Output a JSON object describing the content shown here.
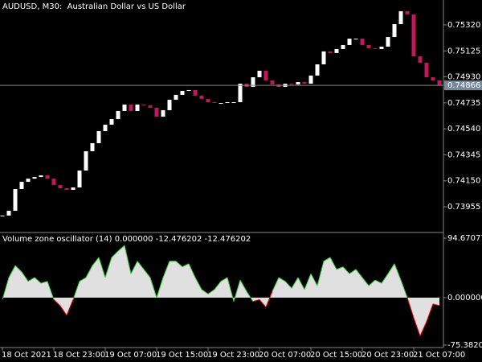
{
  "chart_data": [
    {
      "type": "candlestick",
      "title": "AUDUSD, M30:  Australian Dollar vs US Dollar",
      "values": [
        0.73889,
        0.73925,
        0.74088,
        0.74142,
        0.74166,
        0.74178,
        0.74191,
        0.74166,
        0.74118,
        0.74094,
        0.74082,
        0.741,
        0.74227,
        0.74372,
        0.74432,
        0.74523,
        0.74571,
        0.74613,
        0.74674,
        0.74722,
        0.74674,
        0.74722,
        0.74716,
        0.74698,
        0.74631,
        0.7468,
        0.74758,
        0.74795,
        0.74825,
        0.74831,
        0.74789,
        0.74764,
        0.7474,
        0.74734,
        0.74734,
        0.7474,
        0.7474,
        0.74879,
        0.74855,
        0.74927,
        0.74976,
        0.74903,
        0.74873,
        0.74855,
        0.74879,
        0.74873,
        0.74891,
        0.74879,
        0.7494,
        0.75024,
        0.75121,
        0.75109,
        0.75139,
        0.75169,
        0.75217,
        0.75217,
        0.75169,
        0.75145,
        0.75139,
        0.75157,
        0.75229,
        0.75326,
        0.75423,
        0.75399,
        0.75084,
        0.75036,
        0.74927,
        0.74903,
        0.74866
      ],
      "last_price_label": "0.74866",
      "up_color": "#ffffff",
      "down_color": "#c2185b",
      "ylim": [
        0.73768,
        0.75507
      ],
      "yticks": [
        {
          "value": 0.7532,
          "label": "0.75320"
        },
        {
          "value": 0.75125,
          "label": "0.75125"
        },
        {
          "value": 0.7493,
          "label": "0.74930"
        },
        {
          "value": 0.74735,
          "label": "0.74735"
        },
        {
          "value": 0.7454,
          "label": "0.74540"
        },
        {
          "value": 0.74345,
          "label": "0.74345"
        },
        {
          "value": 0.7415,
          "label": "0.74150"
        },
        {
          "value": 0.73955,
          "label": "0.73955"
        }
      ]
    },
    {
      "type": "area",
      "title": "Volume zone oscillator (14) 0.000000 -12.476202 -12.476202",
      "categories": [
        "18 Oct 2021",
        null,
        null,
        null,
        null,
        null,
        null,
        null,
        "18 Oct 23:00",
        null,
        null,
        null,
        null,
        null,
        null,
        null,
        "19 Oct 07:00",
        null,
        null,
        null,
        null,
        null,
        null,
        null,
        "19 Oct 15:00",
        null,
        null,
        null,
        null,
        null,
        null,
        null,
        "19 Oct 23:00",
        null,
        null,
        null,
        null,
        null,
        null,
        null,
        "20 Oct 07:00",
        null,
        null,
        null,
        null,
        null,
        null,
        null,
        "20 Oct 15:00",
        null,
        null,
        null,
        null,
        null,
        null,
        null,
        "20 Oct 23:00",
        null,
        null,
        null,
        null,
        null,
        null,
        null,
        "21 Oct 07:00",
        null,
        null,
        null,
        null
      ],
      "values": [
        -3,
        32,
        51,
        41,
        26,
        32,
        23,
        26,
        -3,
        -13,
        -28,
        -3,
        26,
        32,
        51,
        64,
        32,
        64,
        74,
        83,
        38,
        58,
        45,
        32,
        0,
        32,
        58,
        58,
        49,
        54,
        32,
        13,
        6,
        13,
        26,
        32,
        -6,
        28,
        10,
        -6,
        -3,
        -15,
        10,
        32,
        26,
        15,
        32,
        13,
        38,
        19,
        58,
        64,
        45,
        49,
        38,
        45,
        32,
        19,
        28,
        23,
        38,
        54,
        28,
        0,
        -32,
        -61,
        -38,
        -10,
        -12.476202
      ],
      "fill_color": "#e0e0e0",
      "up_color": "#32cd32",
      "down_color": "#ff0000",
      "ylim": [
        -75.38202,
        94.67077
      ],
      "yticks": [
        {
          "value": 94.67077,
          "label": "94.670770"
        },
        {
          "value": 0,
          "label": "0.000000"
        },
        {
          "value": -75.38202,
          "label": "-75.382020"
        }
      ]
    }
  ]
}
